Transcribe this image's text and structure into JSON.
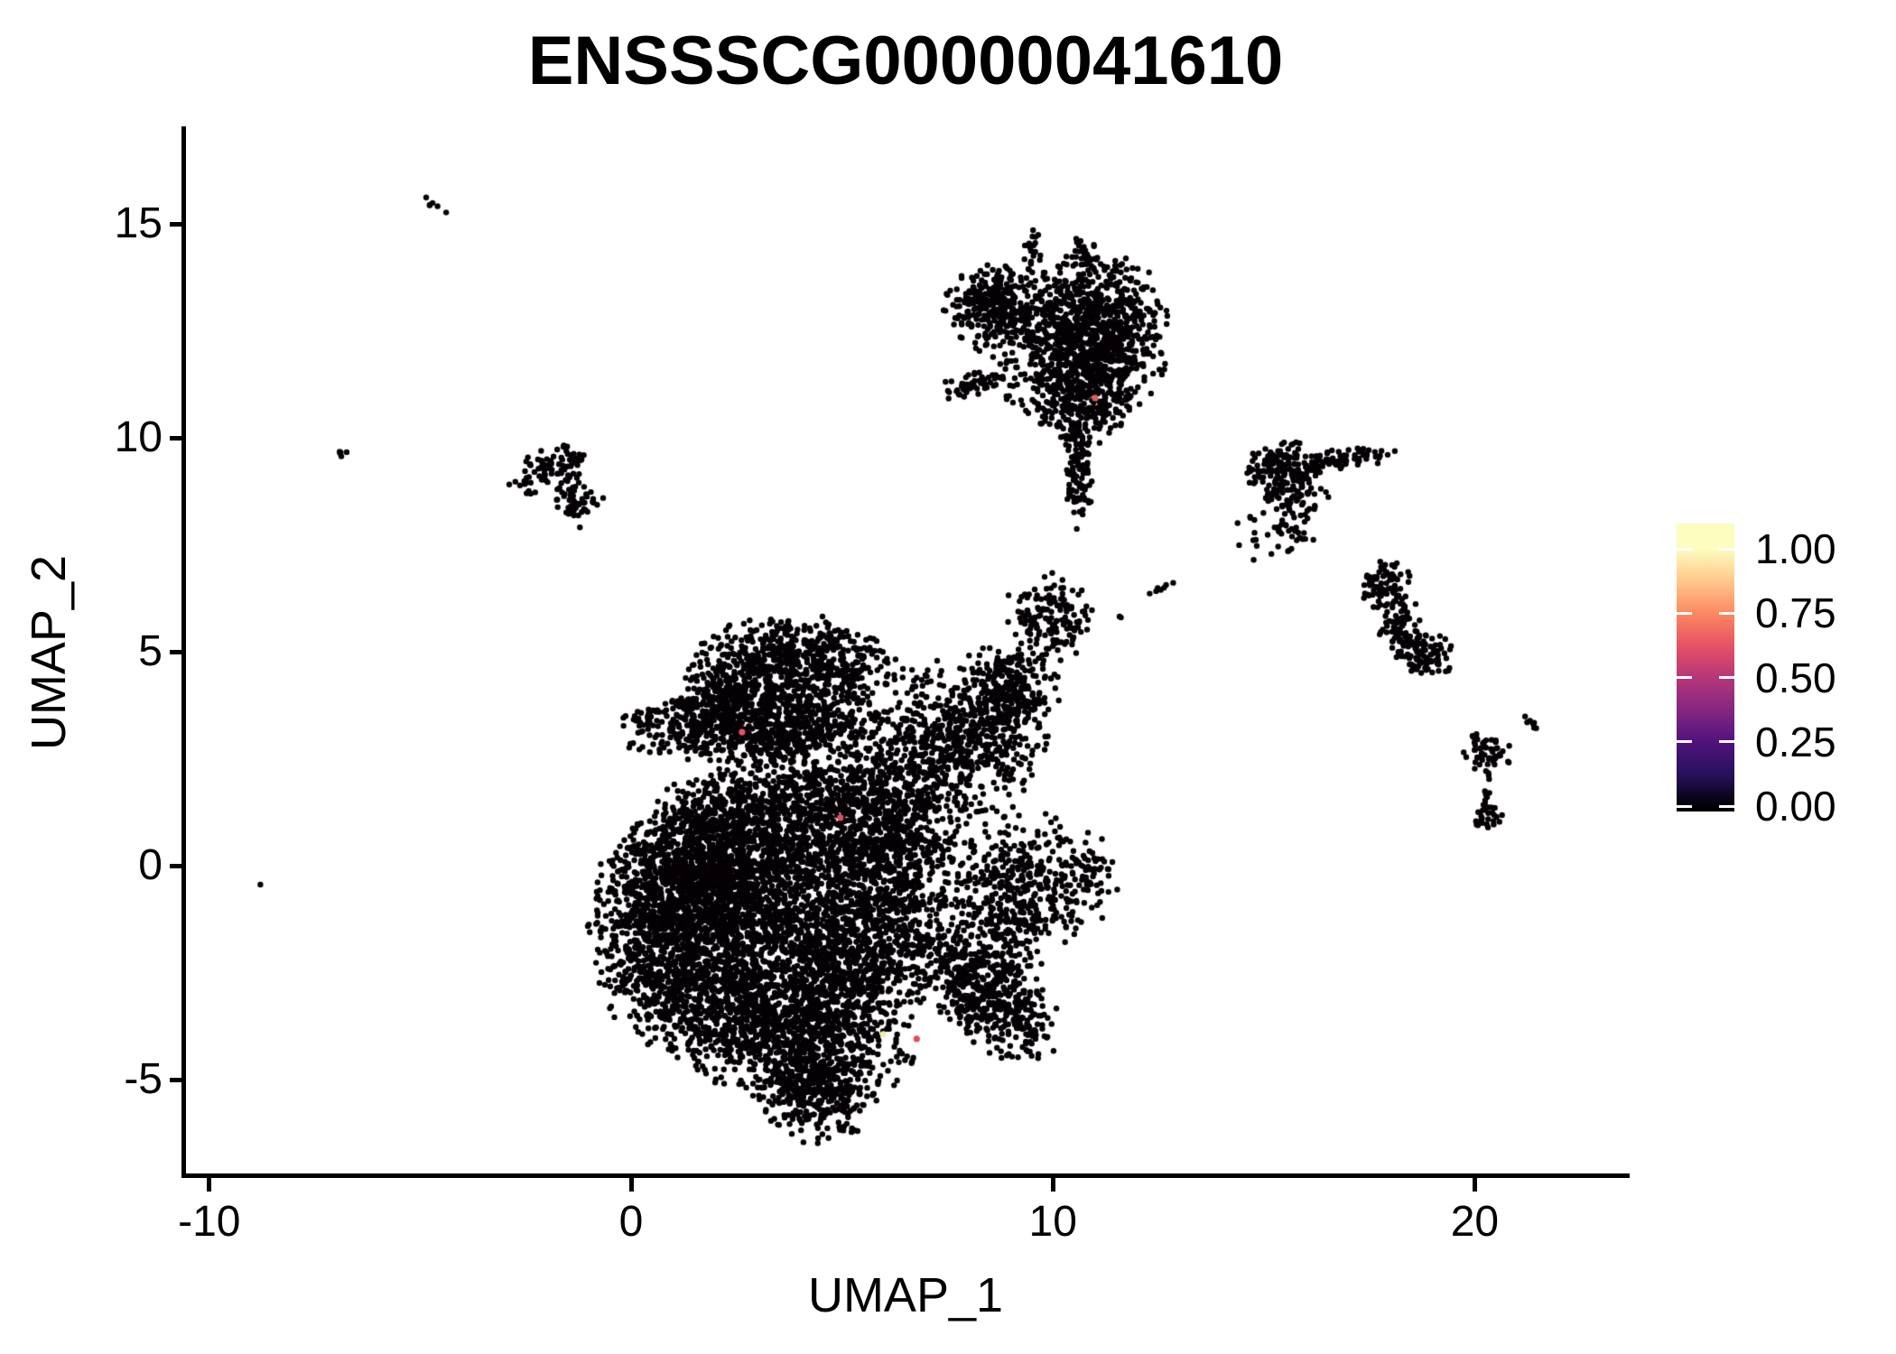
{
  "title": "ENSSSCG00000041610",
  "axes": {
    "x": {
      "label": "UMAP_1",
      "ticks": [
        -10,
        0,
        10,
        20
      ],
      "tick_labels": [
        "-10",
        "0",
        "10",
        "20"
      ]
    },
    "y": {
      "label": "UMAP_2",
      "ticks": [
        -5,
        0,
        5,
        10,
        15
      ],
      "tick_labels": [
        "-5",
        "0",
        "5",
        "10",
        "15"
      ]
    }
  },
  "legend": {
    "labels": [
      "1.00",
      "0.75",
      "0.50",
      "0.25",
      "0.00"
    ],
    "values": [
      1.0,
      0.75,
      0.5,
      0.25,
      0.0
    ],
    "colormap_name": "magma",
    "colormap_stops": [
      {
        "value": 0.0,
        "color": "#000004"
      },
      {
        "value": 0.25,
        "color": "#51127C"
      },
      {
        "value": 0.5,
        "color": "#B63679"
      },
      {
        "value": 0.75,
        "color": "#FC8961"
      },
      {
        "value": 1.0,
        "color": "#FCFDBF"
      }
    ]
  },
  "chart_data": {
    "type": "scatter",
    "title": "ENSSSCG00000041610",
    "xlabel": "UMAP_1",
    "ylabel": "UMAP_2",
    "xlim": [
      -10.6,
      23.6
    ],
    "ylim": [
      -7.2,
      17.2
    ],
    "grid": false,
    "legend_position": "right",
    "point_style": {
      "radius_px": 3.2,
      "color": "#050105"
    },
    "clusters": [
      {
        "region": "main-core",
        "cx": 3.1,
        "cy": -1.0,
        "sx": 1.8,
        "sy": 1.5,
        "rot": 0,
        "n": 2200
      },
      {
        "region": "main-left-bulge",
        "cx": 0.9,
        "cy": -1.5,
        "sx": 0.9,
        "sy": 1.3,
        "rot": 0,
        "n": 1000
      },
      {
        "region": "main-left-mid",
        "cx": 2.0,
        "cy": 0.3,
        "sx": 0.9,
        "sy": 0.9,
        "rot": 0,
        "n": 600
      },
      {
        "region": "main-bottom-lobe",
        "cx": 3.7,
        "cy": -3.9,
        "sx": 1.4,
        "sy": 0.8,
        "rot": -10,
        "n": 1000
      },
      {
        "region": "main-bottom-tip",
        "cx": 4.4,
        "cy": -5.3,
        "sx": 0.7,
        "sy": 0.55,
        "rot": 0,
        "n": 300
      },
      {
        "region": "main-top-band",
        "cx": 2.9,
        "cy": 3.3,
        "sx": 1.5,
        "sy": 0.42,
        "rot": 3,
        "n": 800
      },
      {
        "region": "main-top-lobe",
        "cx": 3.3,
        "cy": 4.7,
        "sx": 0.95,
        "sy": 0.5,
        "rot": 0,
        "n": 420
      },
      {
        "region": "main-top-left",
        "cx": 2.1,
        "cy": 4.0,
        "sx": 0.5,
        "sy": 0.4,
        "rot": 0,
        "n": 150
      },
      {
        "region": "main-top-right-curl",
        "cx": 5.0,
        "cy": 4.8,
        "sx": 0.7,
        "sy": 0.45,
        "rot": -15,
        "n": 220
      },
      {
        "region": "main-mid-lobe",
        "cx": 4.5,
        "cy": 1.4,
        "sx": 1.2,
        "sy": 0.9,
        "rot": 0,
        "n": 700
      },
      {
        "region": "main-right-mid-lobe",
        "cx": 6.4,
        "cy": 0.6,
        "sx": 0.8,
        "sy": 1.2,
        "rot": 0,
        "n": 600
      },
      {
        "region": "main-upper-right-lobe",
        "cx": 7.7,
        "cy": 3.0,
        "sx": 1.0,
        "sy": 0.85,
        "rot": 0,
        "n": 600
      },
      {
        "region": "main-upper-right-ext",
        "cx": 8.9,
        "cy": 4.1,
        "sx": 0.6,
        "sy": 0.55,
        "rot": 0,
        "n": 250
      },
      {
        "region": "main-fill-lower-mid",
        "cx": 5.4,
        "cy": -2.2,
        "sx": 0.9,
        "sy": 0.9,
        "rot": 0,
        "n": 500
      },
      {
        "region": "main-br-crescent",
        "cx": 9.2,
        "cy": -0.7,
        "sx": 0.7,
        "sy": 1.0,
        "rot": 0,
        "n": 400
      },
      {
        "region": "main-br-diagonal",
        "cx": 8.6,
        "cy": -3.2,
        "sx": 0.85,
        "sy": 0.5,
        "rot": -38,
        "n": 400
      },
      {
        "region": "main-br-connector",
        "cx": 7.5,
        "cy": -1.8,
        "sx": 0.7,
        "sy": 0.8,
        "rot": 0,
        "n": 200
      },
      {
        "region": "main-right-ext",
        "cx": 10.7,
        "cy": -0.3,
        "sx": 0.45,
        "sy": 0.5,
        "rot": 0,
        "n": 80
      },
      {
        "region": "top-right-mass",
        "cx": 11.1,
        "cy": 12.4,
        "sx": 0.8,
        "sy": 0.9,
        "rot": 0,
        "n": 750
      },
      {
        "region": "top-mid",
        "cx": 9.9,
        "cy": 12.3,
        "sx": 0.8,
        "sy": 0.85,
        "rot": 0,
        "n": 350
      },
      {
        "region": "top-left-lobe",
        "cx": 8.6,
        "cy": 13.1,
        "sx": 0.55,
        "sy": 0.45,
        "rot": 0,
        "n": 260
      },
      {
        "region": "top-bottom-lump",
        "cx": 10.7,
        "cy": 10.9,
        "sx": 0.55,
        "sy": 0.5,
        "rot": 0,
        "n": 200
      },
      {
        "region": "top-tail",
        "cx": 10.6,
        "cy": 9.4,
        "sx": 0.16,
        "sy": 0.8,
        "rot": 0,
        "n": 120
      },
      {
        "region": "top-left-arm",
        "cx": 8.1,
        "cy": 11.25,
        "sx": 0.45,
        "sy": 0.15,
        "rot": 15,
        "n": 55
      },
      {
        "region": "top-streak",
        "cx": 9.5,
        "cy": 14.35,
        "sx": 0.1,
        "sy": 0.3,
        "rot": 0,
        "n": 22
      },
      {
        "region": "top-upper-bump",
        "cx": 10.7,
        "cy": 14.3,
        "sx": 0.18,
        "sy": 0.2,
        "rot": 0,
        "n": 30
      },
      {
        "region": "mid-blob",
        "cx": 9.9,
        "cy": 5.8,
        "sx": 0.5,
        "sy": 0.5,
        "rot": 0,
        "n": 150
      },
      {
        "region": "mid-dash",
        "cx": 12.5,
        "cy": 6.45,
        "sx": 0.22,
        "sy": 0.06,
        "rot": 20,
        "n": 7
      },
      {
        "region": "mid-dot",
        "cx": 11.6,
        "cy": 5.8,
        "sx": 0.04,
        "sy": 0.04,
        "rot": 0,
        "n": 2
      },
      {
        "region": "topleft-streak",
        "cx": -4.65,
        "cy": 15.45,
        "sx": 0.17,
        "sy": 0.05,
        "rot": -40,
        "n": 6
      },
      {
        "region": "left-streak",
        "cx": -6.8,
        "cy": 9.65,
        "sx": 0.11,
        "sy": 0.05,
        "rot": -30,
        "n": 5
      },
      {
        "region": "left-cluster-upper",
        "cx": -1.8,
        "cy": 9.3,
        "sx": 0.45,
        "sy": 0.28,
        "rot": 10,
        "n": 75
      },
      {
        "region": "left-cluster-lower",
        "cx": -1.25,
        "cy": 8.45,
        "sx": 0.3,
        "sy": 0.25,
        "rot": 0,
        "n": 50
      },
      {
        "region": "left-cluster-arm",
        "cx": -2.55,
        "cy": 8.95,
        "sx": 0.25,
        "sy": 0.15,
        "rot": 0,
        "n": 12
      },
      {
        "region": "lone-dot",
        "cx": -8.8,
        "cy": -0.45,
        "sx": 0.02,
        "sy": 0.02,
        "rot": 0,
        "n": 1
      },
      {
        "region": "right1-knot",
        "cx": 15.4,
        "cy": 9.25,
        "sx": 0.4,
        "sy": 0.33,
        "rot": 0,
        "n": 160
      },
      {
        "region": "right1-arm",
        "cx": 16.8,
        "cy": 9.5,
        "sx": 0.65,
        "sy": 0.13,
        "rot": 8,
        "n": 80
      },
      {
        "region": "right1-below",
        "cx": 15.7,
        "cy": 8.4,
        "sx": 0.4,
        "sy": 0.5,
        "rot": 0,
        "n": 80
      },
      {
        "region": "right1-sparse",
        "cx": 15.1,
        "cy": 7.8,
        "sx": 0.35,
        "sy": 0.35,
        "rot": 0,
        "n": 18
      },
      {
        "region": "right2-hook",
        "cx": 17.9,
        "cy": 6.5,
        "sx": 0.3,
        "sy": 0.3,
        "rot": 0,
        "n": 80
      },
      {
        "region": "right2-mid",
        "cx": 18.25,
        "cy": 5.7,
        "sx": 0.22,
        "sy": 0.35,
        "rot": -20,
        "n": 55
      },
      {
        "region": "right2-knot",
        "cx": 18.75,
        "cy": 5.0,
        "sx": 0.4,
        "sy": 0.28,
        "rot": -25,
        "n": 110
      },
      {
        "region": "right2-tip",
        "cx": 19.3,
        "cy": 4.6,
        "sx": 0.1,
        "sy": 0.07,
        "rot": 0,
        "n": 3
      },
      {
        "region": "chain-dash",
        "cx": 21.4,
        "cy": 3.3,
        "sx": 0.18,
        "sy": 0.05,
        "rot": -35,
        "n": 7
      },
      {
        "region": "chain-knot",
        "cx": 20.35,
        "cy": 2.65,
        "sx": 0.28,
        "sy": 0.22,
        "rot": 0,
        "n": 45
      },
      {
        "region": "chain-arm-left",
        "cx": 19.95,
        "cy": 2.95,
        "sx": 0.12,
        "sy": 0.07,
        "rot": 0,
        "n": 6
      },
      {
        "region": "chain-dot1",
        "cx": 20.3,
        "cy": 2.1,
        "sx": 0.05,
        "sy": 0.1,
        "rot": 0,
        "n": 4
      },
      {
        "region": "chain-dot2",
        "cx": 20.32,
        "cy": 1.7,
        "sx": 0.05,
        "sy": 0.12,
        "rot": 0,
        "n": 5
      },
      {
        "region": "chain-bottom",
        "cx": 20.3,
        "cy": 1.2,
        "sx": 0.16,
        "sy": 0.18,
        "rot": 0,
        "n": 30
      }
    ],
    "highlighted_cells": [
      {
        "x": 2.63,
        "y": 3.12,
        "color": "#E8506B"
      },
      {
        "x": 4.96,
        "y": 1.12,
        "color": "#E04E5F"
      },
      {
        "x": 5.98,
        "y": -3.94,
        "color": "#F4EEA9"
      },
      {
        "x": 6.77,
        "y": -4.05,
        "color": "#E34D5F"
      },
      {
        "x": 11.0,
        "y": 10.93,
        "color": "#E25B5B"
      }
    ]
  }
}
